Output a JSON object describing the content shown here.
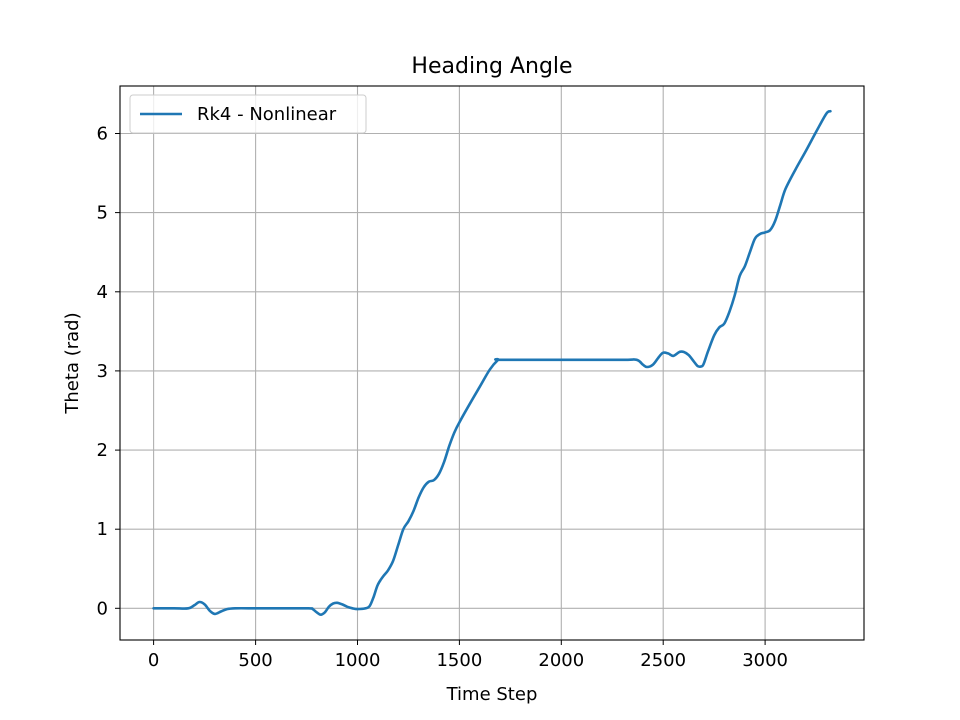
{
  "chart_data": {
    "type": "line",
    "title": "Heading Angle",
    "xlabel": "Time Step",
    "ylabel": "Theta (rad)",
    "xlim": [
      -165,
      3485
    ],
    "ylim": [
      -0.4,
      6.6
    ],
    "xticks": [
      0,
      500,
      1000,
      1500,
      2000,
      2500,
      3000
    ],
    "yticks": [
      0,
      1,
      2,
      3,
      4,
      5,
      6
    ],
    "grid": true,
    "legend_position": "top-left",
    "series": [
      {
        "name": "Rk4 - Nonlinear",
        "color": "#1f77b4",
        "x": [
          0,
          100,
          170,
          200,
          225,
          250,
          275,
          300,
          330,
          360,
          400,
          500,
          600,
          760,
          780,
          800,
          820,
          840,
          860,
          880,
          900,
          925,
          950,
          975,
          1000,
          1040,
          1060,
          1080,
          1100,
          1125,
          1150,
          1175,
          1200,
          1225,
          1250,
          1275,
          1300,
          1325,
          1350,
          1375,
          1400,
          1425,
          1450,
          1475,
          1500,
          1550,
          1600,
          1650,
          1690,
          1700,
          2000,
          2300,
          2370,
          2400,
          2420,
          2450,
          2480,
          2500,
          2525,
          2550,
          2580,
          2600,
          2625,
          2650,
          2670,
          2690,
          2700,
          2720,
          2750,
          2775,
          2800,
          2825,
          2850,
          2875,
          2900,
          2925,
          2950,
          2975,
          3000,
          3025,
          3050,
          3075,
          3100,
          3150,
          3200,
          3250,
          3300,
          3320
        ],
        "y": [
          0.0,
          0.0,
          0.0,
          0.04,
          0.08,
          0.05,
          -0.03,
          -0.07,
          -0.04,
          -0.01,
          0.0,
          0.0,
          0.0,
          0.0,
          -0.01,
          -0.05,
          -0.08,
          -0.05,
          0.02,
          0.06,
          0.07,
          0.05,
          0.02,
          0.0,
          -0.01,
          0.0,
          0.03,
          0.15,
          0.3,
          0.4,
          0.48,
          0.6,
          0.8,
          1.0,
          1.1,
          1.23,
          1.4,
          1.53,
          1.6,
          1.62,
          1.7,
          1.85,
          2.05,
          2.22,
          2.35,
          2.58,
          2.8,
          3.02,
          3.14,
          3.14,
          3.14,
          3.14,
          3.14,
          3.08,
          3.05,
          3.08,
          3.18,
          3.23,
          3.22,
          3.19,
          3.24,
          3.24,
          3.2,
          3.12,
          3.06,
          3.06,
          3.1,
          3.25,
          3.45,
          3.55,
          3.6,
          3.75,
          3.95,
          4.2,
          4.32,
          4.5,
          4.67,
          4.73,
          4.75,
          4.78,
          4.9,
          5.1,
          5.3,
          5.55,
          5.78,
          6.02,
          6.25,
          6.28
        ]
      }
    ]
  }
}
